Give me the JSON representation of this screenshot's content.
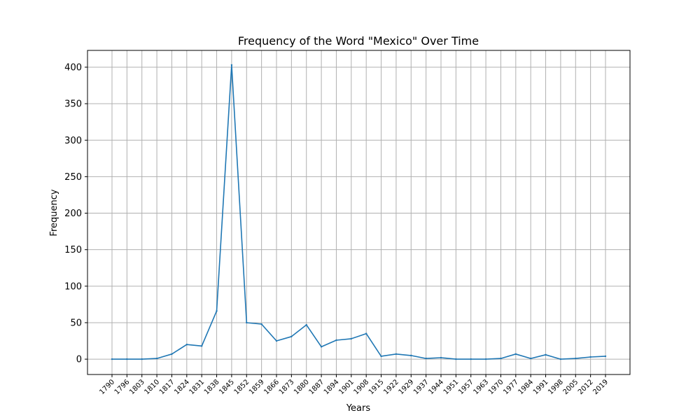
{
  "chart_data": {
    "type": "line",
    "title": "Frequency of the Word \"Mexico\" Over Time",
    "xlabel": "Years",
    "ylabel": "Frequency",
    "grid": true,
    "ylim": [
      -21,
      423
    ],
    "y_ticks": [
      0,
      50,
      100,
      150,
      200,
      250,
      300,
      350,
      400
    ],
    "categories": [
      "1790",
      "1796",
      "1803",
      "1810",
      "1817",
      "1824",
      "1831",
      "1838",
      "1845",
      "1852",
      "1859",
      "1866",
      "1873",
      "1880",
      "1887",
      "1894",
      "1901",
      "1908",
      "1915",
      "1922",
      "1929",
      "1937",
      "1944",
      "1951",
      "1957",
      "1963",
      "1970",
      "1977",
      "1984",
      "1991",
      "1998",
      "2005",
      "2012",
      "2019"
    ],
    "series": [
      {
        "values": [
          0,
          0,
          0,
          1,
          7,
          20,
          18,
          66,
          403,
          50,
          48,
          25,
          31,
          47,
          17,
          26,
          28,
          35,
          4,
          7,
          5,
          1,
          2,
          0,
          0,
          0,
          1,
          7,
          1,
          6,
          0,
          1,
          3,
          4
        ],
        "color": "#1f77b4"
      }
    ]
  }
}
